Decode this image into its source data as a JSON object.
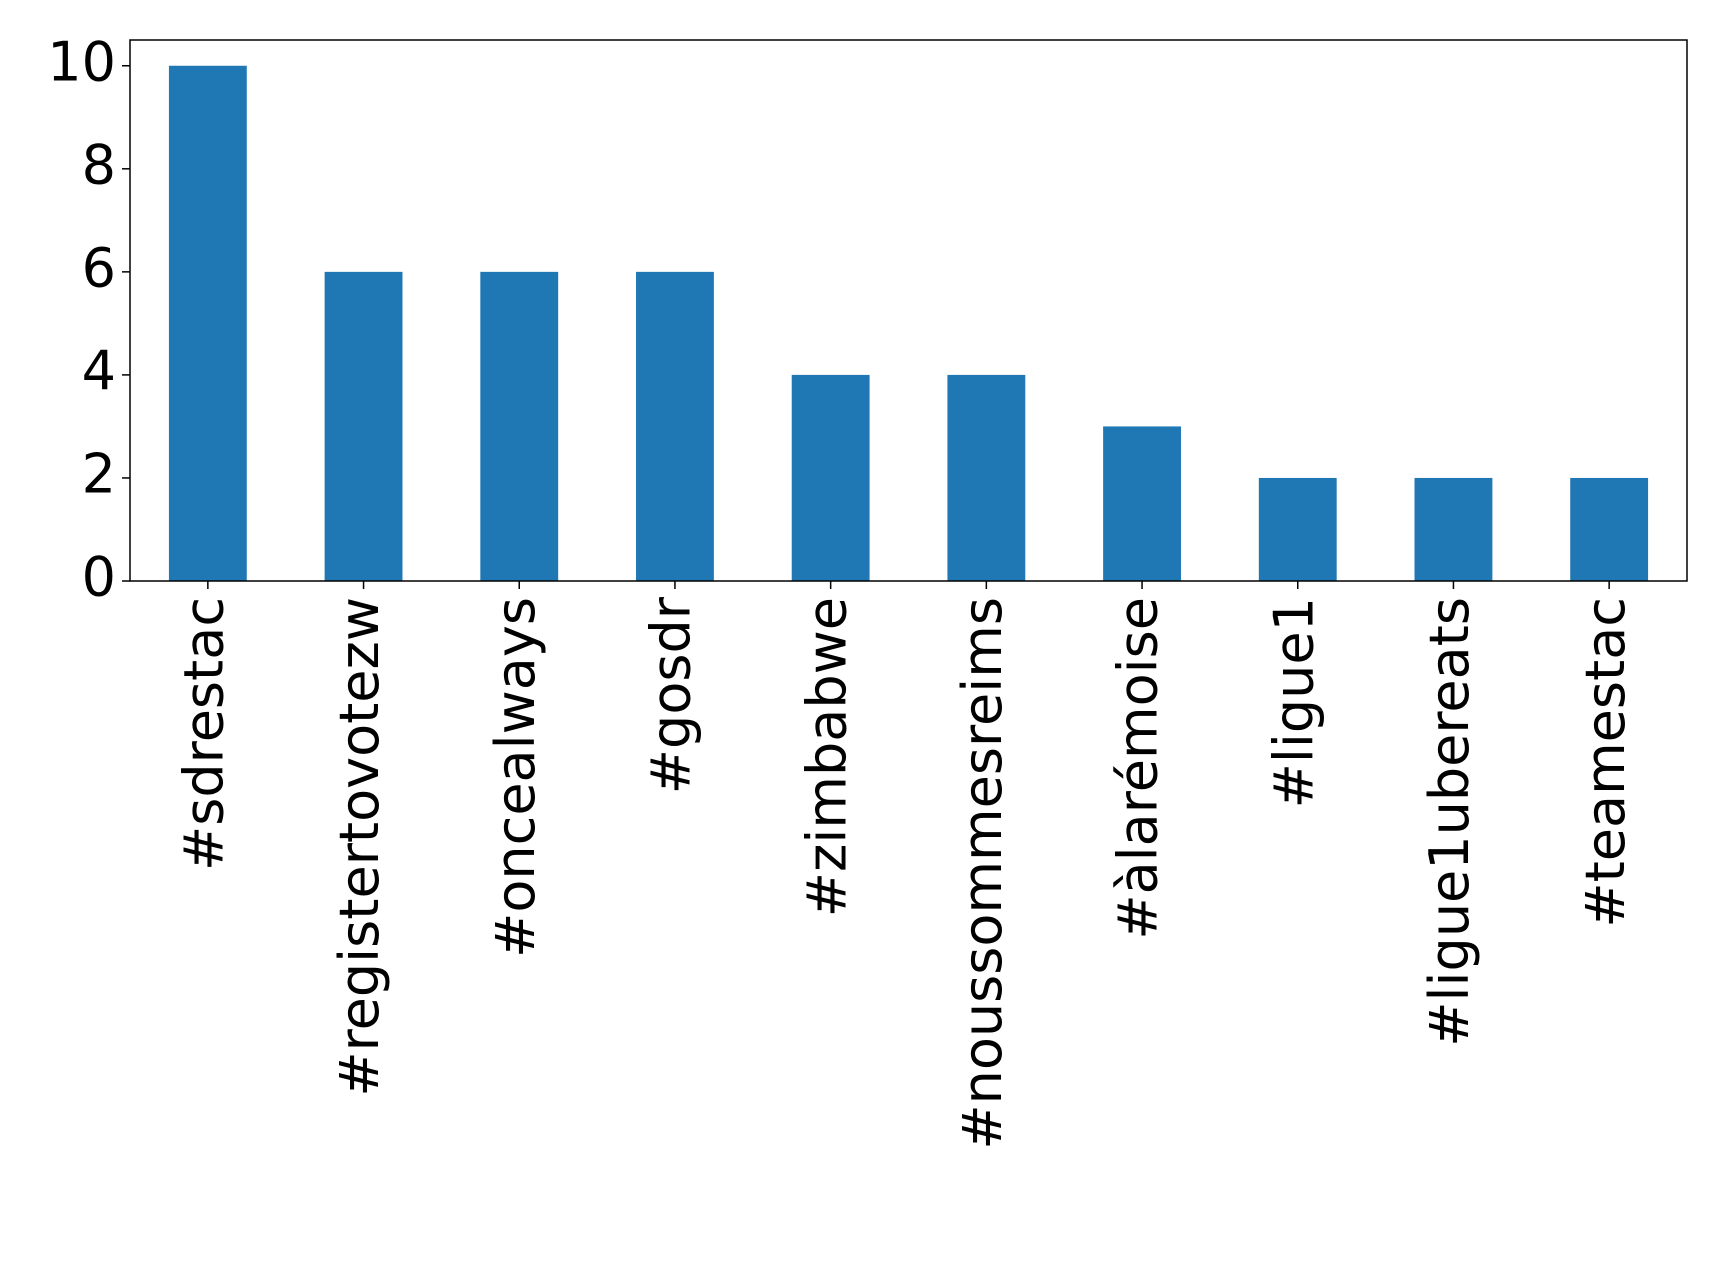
{
  "chart_data": {
    "type": "bar",
    "categories": [
      "#sdrestac",
      "#registertovotezw",
      "#oncealways",
      "#gosdr",
      "#zimbabwe",
      "#noussommesreims",
      "#àlarémoise",
      "#ligue1",
      "#ligue1ubereats",
      "#teamestac"
    ],
    "values": [
      10,
      6,
      6,
      6,
      4,
      4,
      3,
      2,
      2,
      2
    ],
    "color": "#1f77b4",
    "ylim": [
      0,
      10.5
    ],
    "yticks": [
      0,
      2,
      4,
      6,
      8,
      10
    ],
    "grid": false
  }
}
